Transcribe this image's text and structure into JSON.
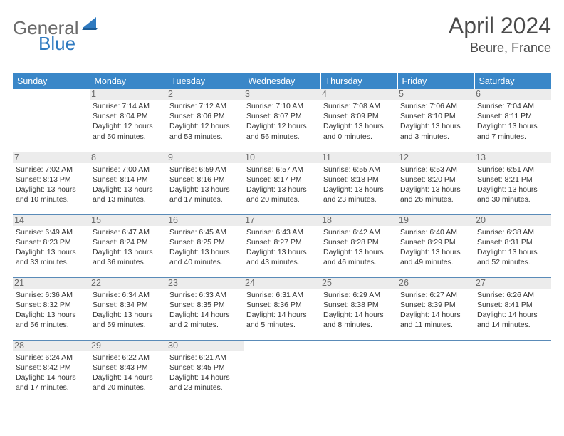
{
  "brand": {
    "general": "General",
    "blue": "Blue"
  },
  "title": "April 2024",
  "location": "Beure, France",
  "colors": {
    "header_bg": "#3a87c8",
    "header_text": "#ffffff",
    "daynum_bg": "#ececec",
    "daynum_text": "#6b6b6b",
    "border": "#5a8bb8",
    "title_text": "#4a4a4a",
    "body_text": "#333333"
  },
  "typography": {
    "month_title_fontsize": 32,
    "location_fontsize": 18,
    "weekday_fontsize": 12.5,
    "daynum_fontsize": 12.5,
    "daytext_fontsize": 10.5
  },
  "weekdays": [
    "Sunday",
    "Monday",
    "Tuesday",
    "Wednesday",
    "Thursday",
    "Friday",
    "Saturday"
  ],
  "grid": [
    [
      null,
      {
        "num": "1",
        "sunrise": "7:14 AM",
        "sunset": "8:04 PM",
        "daylight": "12 hours and 50 minutes."
      },
      {
        "num": "2",
        "sunrise": "7:12 AM",
        "sunset": "8:06 PM",
        "daylight": "12 hours and 53 minutes."
      },
      {
        "num": "3",
        "sunrise": "7:10 AM",
        "sunset": "8:07 PM",
        "daylight": "12 hours and 56 minutes."
      },
      {
        "num": "4",
        "sunrise": "7:08 AM",
        "sunset": "8:09 PM",
        "daylight": "13 hours and 0 minutes."
      },
      {
        "num": "5",
        "sunrise": "7:06 AM",
        "sunset": "8:10 PM",
        "daylight": "13 hours and 3 minutes."
      },
      {
        "num": "6",
        "sunrise": "7:04 AM",
        "sunset": "8:11 PM",
        "daylight": "13 hours and 7 minutes."
      }
    ],
    [
      {
        "num": "7",
        "sunrise": "7:02 AM",
        "sunset": "8:13 PM",
        "daylight": "13 hours and 10 minutes."
      },
      {
        "num": "8",
        "sunrise": "7:00 AM",
        "sunset": "8:14 PM",
        "daylight": "13 hours and 13 minutes."
      },
      {
        "num": "9",
        "sunrise": "6:59 AM",
        "sunset": "8:16 PM",
        "daylight": "13 hours and 17 minutes."
      },
      {
        "num": "10",
        "sunrise": "6:57 AM",
        "sunset": "8:17 PM",
        "daylight": "13 hours and 20 minutes."
      },
      {
        "num": "11",
        "sunrise": "6:55 AM",
        "sunset": "8:18 PM",
        "daylight": "13 hours and 23 minutes."
      },
      {
        "num": "12",
        "sunrise": "6:53 AM",
        "sunset": "8:20 PM",
        "daylight": "13 hours and 26 minutes."
      },
      {
        "num": "13",
        "sunrise": "6:51 AM",
        "sunset": "8:21 PM",
        "daylight": "13 hours and 30 minutes."
      }
    ],
    [
      {
        "num": "14",
        "sunrise": "6:49 AM",
        "sunset": "8:23 PM",
        "daylight": "13 hours and 33 minutes."
      },
      {
        "num": "15",
        "sunrise": "6:47 AM",
        "sunset": "8:24 PM",
        "daylight": "13 hours and 36 minutes."
      },
      {
        "num": "16",
        "sunrise": "6:45 AM",
        "sunset": "8:25 PM",
        "daylight": "13 hours and 40 minutes."
      },
      {
        "num": "17",
        "sunrise": "6:43 AM",
        "sunset": "8:27 PM",
        "daylight": "13 hours and 43 minutes."
      },
      {
        "num": "18",
        "sunrise": "6:42 AM",
        "sunset": "8:28 PM",
        "daylight": "13 hours and 46 minutes."
      },
      {
        "num": "19",
        "sunrise": "6:40 AM",
        "sunset": "8:29 PM",
        "daylight": "13 hours and 49 minutes."
      },
      {
        "num": "20",
        "sunrise": "6:38 AM",
        "sunset": "8:31 PM",
        "daylight": "13 hours and 52 minutes."
      }
    ],
    [
      {
        "num": "21",
        "sunrise": "6:36 AM",
        "sunset": "8:32 PM",
        "daylight": "13 hours and 56 minutes."
      },
      {
        "num": "22",
        "sunrise": "6:34 AM",
        "sunset": "8:34 PM",
        "daylight": "13 hours and 59 minutes."
      },
      {
        "num": "23",
        "sunrise": "6:33 AM",
        "sunset": "8:35 PM",
        "daylight": "14 hours and 2 minutes."
      },
      {
        "num": "24",
        "sunrise": "6:31 AM",
        "sunset": "8:36 PM",
        "daylight": "14 hours and 5 minutes."
      },
      {
        "num": "25",
        "sunrise": "6:29 AM",
        "sunset": "8:38 PM",
        "daylight": "14 hours and 8 minutes."
      },
      {
        "num": "26",
        "sunrise": "6:27 AM",
        "sunset": "8:39 PM",
        "daylight": "14 hours and 11 minutes."
      },
      {
        "num": "27",
        "sunrise": "6:26 AM",
        "sunset": "8:41 PM",
        "daylight": "14 hours and 14 minutes."
      }
    ],
    [
      {
        "num": "28",
        "sunrise": "6:24 AM",
        "sunset": "8:42 PM",
        "daylight": "14 hours and 17 minutes."
      },
      {
        "num": "29",
        "sunrise": "6:22 AM",
        "sunset": "8:43 PM",
        "daylight": "14 hours and 20 minutes."
      },
      {
        "num": "30",
        "sunrise": "6:21 AM",
        "sunset": "8:45 PM",
        "daylight": "14 hours and 23 minutes."
      },
      null,
      null,
      null,
      null
    ]
  ],
  "labels": {
    "sunrise": "Sunrise:",
    "sunset": "Sunset:",
    "daylight": "Daylight:"
  }
}
